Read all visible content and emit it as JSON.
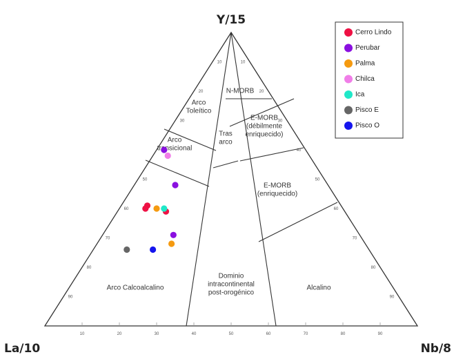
{
  "chart_data": {
    "type": "scatter",
    "subtype": "ternary",
    "vertices": {
      "top": "Y/15",
      "left": "La/10",
      "right": "Nb/8"
    },
    "ticks": [
      "10",
      "20",
      "30",
      "40",
      "50",
      "60",
      "70",
      "80",
      "90"
    ],
    "regions": [
      {
        "lines": [
          "Arco",
          "Toleítico"
        ]
      },
      {
        "lines": [
          "N-MORB"
        ]
      },
      {
        "lines": [
          "Arco",
          "transicional"
        ]
      },
      {
        "lines": [
          "Tras",
          "arco"
        ]
      },
      {
        "lines": [
          "E-MORB",
          "(débilmente",
          "enriquecido)"
        ]
      },
      {
        "lines": [
          "E-MORB",
          "(enriquecido)"
        ]
      },
      {
        "lines": [
          "Arco Calcoalcalino"
        ]
      },
      {
        "lines": [
          "Dominio",
          "intracontinental",
          "post-orogénico"
        ]
      },
      {
        "lines": [
          "Alcalino"
        ]
      }
    ],
    "legend": {
      "position": "top-right"
    },
    "series": [
      {
        "name": "Cerro Lindo",
        "color": "#ee1144",
        "points": [
          {
            "la": 48,
            "y": 39,
            "nb": 13
          },
          {
            "la": 52,
            "y": 41,
            "nb": 7
          },
          {
            "la": 53,
            "y": 40,
            "nb": 7
          }
        ]
      },
      {
        "name": "Perubar",
        "color": "#8a10e0",
        "points": [
          {
            "la": 41,
            "y": 48,
            "nb": 11
          },
          {
            "la": 50,
            "y": 31,
            "nb": 19
          },
          {
            "la": 38,
            "y": 60,
            "nb": 2
          }
        ]
      },
      {
        "name": "Palma",
        "color": "#f59a10",
        "points": [
          {
            "la": 50,
            "y": 40,
            "nb": 10
          },
          {
            "la": 52,
            "y": 28,
            "nb": 20
          }
        ]
      },
      {
        "name": "Chilca",
        "color": "#f07ee8",
        "points": [
          {
            "la": 38,
            "y": 58,
            "nb": 4
          }
        ]
      },
      {
        "name": "Ica",
        "color": "#20e8c8",
        "points": [
          {
            "la": 48,
            "y": 40,
            "nb": 12
          }
        ]
      },
      {
        "name": "Pisco E",
        "color": "#666666",
        "points": [
          {
            "la": 65,
            "y": 26,
            "nb": 9
          }
        ]
      },
      {
        "name": "Pisco O",
        "color": "#1515ee",
        "points": [
          {
            "la": 58,
            "y": 26,
            "nb": 16
          }
        ]
      }
    ]
  }
}
